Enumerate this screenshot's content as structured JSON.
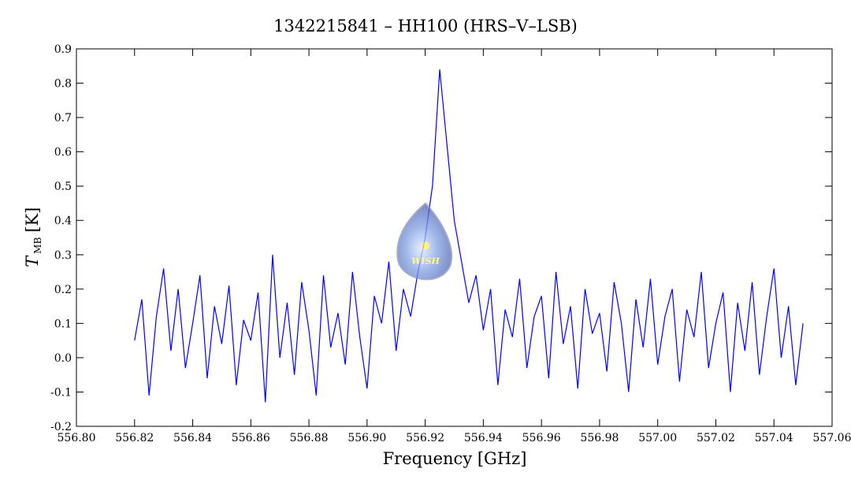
{
  "chart_data": {
    "type": "line",
    "title": "1342215841 – HH100 (HRS–V–LSB)",
    "xlabel": "Frequency [GHz]",
    "ylabel": "T",
    "ylabel_sub": "MB",
    "ylabel_unit": "[K]",
    "watermark": "WISH",
    "xlim": [
      556.8,
      557.06
    ],
    "ylim": [
      -0.2,
      0.9
    ],
    "xticks": [
      {
        "value": 556.8,
        "label": "556.80"
      },
      556.82,
      556.84,
      556.86,
      556.88,
      {
        "value": 556.9,
        "label": "556.90"
      },
      556.92,
      556.94,
      556.96,
      556.98,
      {
        "value": 557.0,
        "label": "557.00"
      },
      557.02,
      557.04,
      557.06
    ],
    "yticks": [
      -0.2,
      -0.1,
      {
        "value": 0.0,
        "label": "0.0"
      },
      0.1,
      0.2,
      0.3,
      0.4,
      0.5,
      0.6,
      0.7,
      0.8,
      0.9
    ],
    "x": [
      556.82,
      556.8225,
      556.825,
      556.8275,
      556.83,
      556.8325,
      556.835,
      556.8375,
      556.84,
      556.8425,
      556.845,
      556.8475,
      556.85,
      556.8525,
      556.855,
      556.8575,
      556.86,
      556.8625,
      556.865,
      556.8675,
      556.87,
      556.8725,
      556.875,
      556.8775,
      556.88,
      556.8825,
      556.885,
      556.8875,
      556.89,
      556.8925,
      556.895,
      556.8975,
      556.9,
      556.9025,
      556.905,
      556.9075,
      556.91,
      556.9125,
      556.915,
      556.9175,
      556.92,
      556.9225,
      556.925,
      556.9275,
      556.93,
      556.9325,
      556.935,
      556.9375,
      556.94,
      556.9425,
      556.945,
      556.9475,
      556.95,
      556.9525,
      556.955,
      556.9575,
      556.96,
      556.9625,
      556.965,
      556.9675,
      556.97,
      556.9725,
      556.975,
      556.9775,
      556.98,
      556.9825,
      556.985,
      556.9875,
      556.99,
      556.9925,
      556.995,
      556.9975,
      557.0,
      557.0025,
      557.005,
      557.0075,
      557.01,
      557.0125,
      557.015,
      557.0175,
      557.02,
      557.0225,
      557.025,
      557.0275,
      557.03,
      557.0325,
      557.035,
      557.0375,
      557.04,
      557.0425,
      557.045,
      557.0475,
      557.05
    ],
    "series": [
      {
        "color": "#0000ff",
        "values": [
          0.05,
          0.17,
          -0.11,
          0.12,
          0.26,
          0.02,
          0.2,
          -0.03,
          0.1,
          0.24,
          -0.06,
          0.15,
          0.04,
          0.21,
          -0.08,
          0.11,
          0.05,
          0.19,
          -0.13,
          0.3,
          0.0,
          0.16,
          -0.05,
          0.22,
          0.08,
          -0.11,
          0.24,
          0.03,
          0.13,
          -0.02,
          0.25,
          0.06,
          -0.09,
          0.18,
          0.1,
          0.28,
          0.02,
          0.2,
          0.12,
          0.25,
          0.35,
          0.5,
          0.84,
          0.62,
          0.4,
          0.28,
          0.16,
          0.24,
          0.08,
          0.2,
          -0.08,
          0.14,
          0.06,
          0.23,
          -0.03,
          0.12,
          0.18,
          -0.06,
          0.25,
          0.04,
          0.15,
          -0.09,
          0.2,
          0.07,
          0.13,
          -0.04,
          0.22,
          0.1,
          -0.1,
          0.17,
          0.03,
          0.23,
          -0.02,
          0.12,
          0.2,
          -0.07,
          0.14,
          0.06,
          0.25,
          -0.03,
          0.1,
          0.19,
          -0.1,
          0.16,
          0.02,
          0.22,
          -0.05,
          0.12,
          0.26,
          0.0,
          0.15,
          -0.08,
          0.1
        ]
      }
    ]
  }
}
